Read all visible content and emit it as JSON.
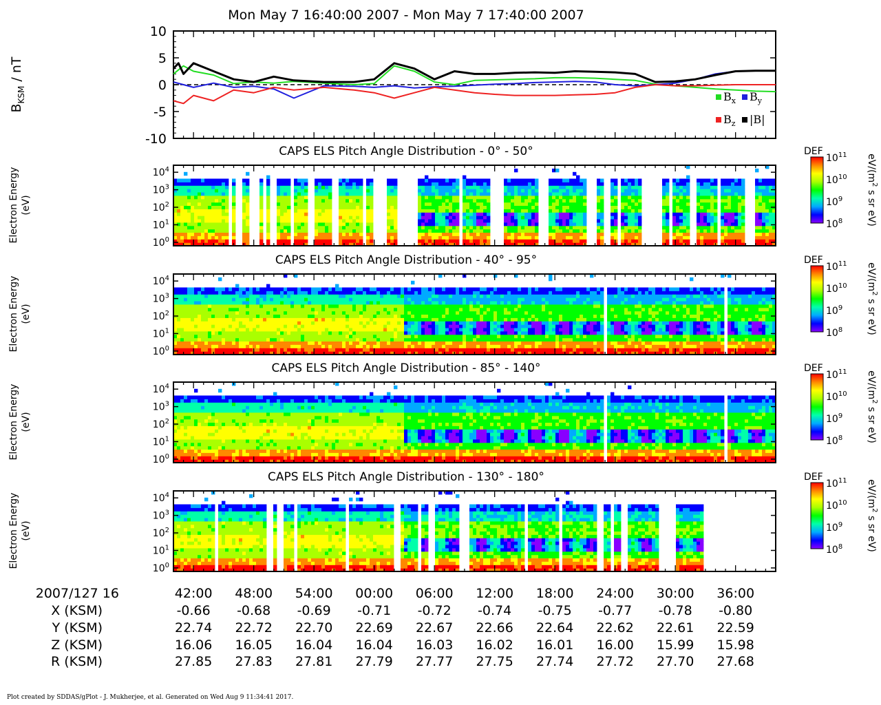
{
  "title": "Mon May 7 16:40:00 2007 - Mon May 7 17:40:00 2007",
  "footer": "Plot created by SDDAS/gPlot - J. Mukherjee, et al.  Generated on Wed Aug 9 11:34:41 2017.",
  "colors": {
    "bx": "#22dd22",
    "by": "#1f1fdd",
    "bz": "#ee2222",
    "bmag": "#000000",
    "colorbar": [
      "#8800ff",
      "#0000ff",
      "#00aaff",
      "#00ffaa",
      "#00ff00",
      "#aaff00",
      "#ffff00",
      "#ff8800",
      "#ff0000"
    ]
  },
  "chart_data": [
    {
      "type": "line",
      "ylabel": "B_KSM / nT",
      "ylabel_main": "B",
      "ylabel_sub": "KSM",
      "ylabel_tail": " / nT",
      "ylim": [
        -10,
        10
      ],
      "yticks": [
        10,
        5,
        0,
        -5,
        -10
      ],
      "ytick_labels": [
        "10",
        "5",
        "0",
        "-5",
        "-10"
      ],
      "xlim_minutes": [
        0,
        60
      ],
      "zero_line": "dashed",
      "legend_placement": "bottom-right",
      "series": [
        {
          "name": "Bx",
          "label_main": "B",
          "label_sub": "x",
          "color_key": "bx",
          "x": [
            0,
            1,
            2,
            4,
            6,
            8,
            10,
            12,
            15,
            18,
            20,
            22,
            24,
            26,
            28,
            30,
            32,
            34,
            36,
            38,
            40,
            42,
            44,
            46,
            48,
            50,
            52,
            54,
            56,
            58,
            60
          ],
          "y": [
            2.0,
            3.5,
            2.5,
            1.8,
            0.2,
            0.5,
            0.3,
            0.6,
            0.3,
            0.0,
            0.2,
            3.5,
            2.5,
            0.5,
            0.0,
            0.8,
            0.9,
            1.0,
            1.1,
            1.3,
            1.3,
            1.2,
            1.0,
            0.8,
            0.1,
            -0.2,
            -0.5,
            -0.8,
            -1.0,
            -1.2,
            -1.3
          ]
        },
        {
          "name": "By",
          "label_main": "B",
          "label_sub": "y",
          "color_key": "by",
          "x": [
            0,
            1,
            2,
            4,
            6,
            8,
            10,
            12,
            15,
            18,
            20,
            22,
            24,
            26,
            28,
            30,
            32,
            34,
            36,
            38,
            40,
            42,
            44,
            46,
            48,
            50,
            52,
            54,
            56,
            58,
            60
          ],
          "y": [
            0.5,
            0.0,
            -0.5,
            0.3,
            -0.5,
            -0.3,
            -0.8,
            -2.5,
            -0.2,
            -0.3,
            -0.5,
            -0.2,
            -0.6,
            -0.4,
            -0.3,
            -0.1,
            0.1,
            0.2,
            0.4,
            0.5,
            0.6,
            0.5,
            0.0,
            -0.2,
            0.0,
            0.3,
            1.0,
            2.0,
            2.5,
            2.6,
            2.6
          ]
        },
        {
          "name": "Bz",
          "label_main": "B",
          "label_sub": "z",
          "color_key": "bz",
          "x": [
            0,
            1,
            2,
            4,
            6,
            8,
            10,
            12,
            15,
            18,
            20,
            22,
            24,
            26,
            28,
            30,
            32,
            34,
            36,
            38,
            40,
            42,
            44,
            46,
            48,
            50,
            52,
            54,
            56,
            58,
            60
          ],
          "y": [
            -3.0,
            -3.5,
            -2.0,
            -3.0,
            -1.0,
            -1.5,
            -0.5,
            -1.0,
            -0.5,
            -1.0,
            -1.5,
            -2.5,
            -1.5,
            -0.5,
            -1.0,
            -1.5,
            -1.8,
            -2.0,
            -2.0,
            -2.0,
            -1.9,
            -1.8,
            -1.5,
            -0.5,
            0.0,
            -0.2,
            -0.2,
            -0.1,
            0.0,
            0.0,
            0.0
          ]
        },
        {
          "name": "|B|",
          "label_main": "|B|",
          "label_sub": "",
          "color_key": "bmag",
          "x": [
            0,
            0.5,
            1,
            2,
            4,
            6,
            8,
            10,
            12,
            15,
            18,
            20,
            22,
            24,
            26,
            28,
            30,
            32,
            34,
            36,
            38,
            40,
            42,
            44,
            46,
            48,
            50,
            52,
            54,
            56,
            58,
            60
          ],
          "y": [
            3.0,
            4.0,
            2.0,
            4.0,
            2.5,
            1.0,
            0.5,
            1.5,
            0.8,
            0.5,
            0.5,
            1.0,
            4.0,
            3.0,
            1.0,
            2.5,
            2.0,
            2.0,
            2.2,
            2.3,
            2.2,
            2.5,
            2.4,
            2.3,
            2.0,
            0.5,
            0.6,
            1.0,
            1.8,
            2.5,
            2.6,
            2.6
          ]
        }
      ]
    },
    {
      "type": "heatmap",
      "title": "CAPS ELS Pitch Angle Distribution - 0° - 50°",
      "ylabel_line1": "Electron Energy",
      "ylabel_line2": "(eV)",
      "ylim_log10": [
        -0.2,
        4.4
      ],
      "yticks_log10": [
        0,
        1,
        2,
        3,
        4
      ],
      "zlabel": "DEF",
      "zunit_main": "eV/(m",
      "zunit_sup": "2",
      "zunit_tail": " s sr eV)",
      "zticks_log10": [
        8,
        9,
        10,
        11
      ],
      "pattern": "broad",
      "coverage_gaps_minutes": [
        [
          5.5,
          5.8
        ],
        [
          6.2,
          6.8
        ],
        [
          7.6,
          8.5
        ],
        [
          8.8,
          9.3
        ],
        [
          9.6,
          10.3
        ],
        [
          11.5,
          12.0
        ],
        [
          13.5,
          14.2
        ],
        [
          15.8,
          16.5
        ],
        [
          18.8,
          19.3
        ],
        [
          20.0,
          21.2
        ],
        [
          22.4,
          24.5
        ],
        [
          28.4,
          28.9
        ],
        [
          31.5,
          33.0
        ],
        [
          36.5,
          37.2
        ],
        [
          41.3,
          42.0
        ],
        [
          42.8,
          43.6
        ],
        [
          44.2,
          44.5
        ],
        [
          46.5,
          48.8
        ],
        [
          49.5,
          49.7
        ],
        [
          51.5,
          52.2
        ],
        [
          54.2,
          54.4
        ],
        [
          57.0,
          58.0
        ]
      ],
      "no_data_after_minutes": 60
    },
    {
      "type": "heatmap",
      "title": "CAPS ELS Pitch Angle Distribution - 40° - 95°",
      "ylabel_line1": "Electron Energy",
      "ylabel_line2": "(eV)",
      "ylim_log10": [
        -0.2,
        4.4
      ],
      "yticks_log10": [
        0,
        1,
        2,
        3,
        4
      ],
      "zlabel": "DEF",
      "zunit_main": "eV/(m",
      "zunit_sup": "2",
      "zunit_tail": " s sr eV)",
      "zticks_log10": [
        8,
        9,
        10,
        11
      ],
      "pattern": "dense",
      "coverage_gaps_minutes": [
        [
          0.3,
          0.4
        ],
        [
          4.0,
          4.1
        ],
        [
          11.0,
          11.1
        ],
        [
          14.0,
          14.1
        ],
        [
          17.0,
          17.1
        ],
        [
          19.5,
          19.6
        ],
        [
          22.0,
          22.1
        ],
        [
          25.0,
          25.1
        ],
        [
          28.0,
          28.1
        ],
        [
          29.8,
          29.9
        ],
        [
          33.5,
          33.6
        ],
        [
          35.0,
          35.1
        ],
        [
          37.0,
          37.1
        ],
        [
          40.5,
          40.6
        ],
        [
          43.0,
          43.1
        ],
        [
          45.5,
          45.6
        ],
        [
          48.0,
          48.1
        ],
        [
          50.0,
          50.1
        ],
        [
          52.5,
          52.6
        ],
        [
          55.0,
          55.1
        ],
        [
          57.5,
          57.6
        ]
      ],
      "no_data_after_minutes": 60
    },
    {
      "type": "heatmap",
      "title": "CAPS ELS Pitch Angle Distribution - 85° - 140°",
      "ylabel_line1": "Electron Energy",
      "ylabel_line2": "(eV)",
      "ylim_log10": [
        -0.2,
        4.4
      ],
      "yticks_log10": [
        0,
        1,
        2,
        3,
        4
      ],
      "zlabel": "DEF",
      "zunit_main": "eV/(m",
      "zunit_sup": "2",
      "zunit_tail": " s sr eV)",
      "zticks_log10": [
        8,
        9,
        10,
        11
      ],
      "pattern": "dense",
      "coverage_gaps_minutes": [
        [
          0.3,
          0.4
        ],
        [
          4.0,
          4.1
        ],
        [
          11.0,
          11.1
        ],
        [
          14.0,
          14.1
        ],
        [
          17.0,
          17.1
        ],
        [
          19.5,
          19.6
        ],
        [
          22.0,
          22.1
        ],
        [
          25.0,
          25.1
        ],
        [
          28.0,
          28.1
        ],
        [
          29.8,
          29.9
        ],
        [
          33.5,
          33.6
        ],
        [
          35.0,
          35.1
        ],
        [
          37.0,
          37.1
        ],
        [
          40.5,
          40.6
        ],
        [
          43.0,
          43.1
        ],
        [
          45.5,
          45.6
        ],
        [
          48.0,
          48.1
        ],
        [
          50.0,
          50.1
        ],
        [
          52.5,
          52.6
        ],
        [
          55.0,
          55.1
        ],
        [
          57.5,
          57.6
        ]
      ],
      "no_data_after_minutes": 60
    },
    {
      "type": "heatmap",
      "title": "CAPS ELS Pitch Angle Distribution - 130° - 180°",
      "ylabel_line1": "Electron Energy",
      "ylabel_line2": "(eV)",
      "ylim_log10": [
        -0.2,
        4.4
      ],
      "yticks_log10": [
        0,
        1,
        2,
        3,
        4
      ],
      "zlabel": "DEF",
      "zunit_main": "eV/(m",
      "zunit_sup": "2",
      "zunit_tail": " s sr eV)",
      "zticks_log10": [
        8,
        9,
        10,
        11
      ],
      "pattern": "broad",
      "coverage_gaps_minutes": [
        [
          4.0,
          4.4
        ],
        [
          9.3,
          9.8
        ],
        [
          10.3,
          11.0
        ],
        [
          12.0,
          12.3
        ],
        [
          17.0,
          17.5
        ],
        [
          22.0,
          22.5
        ],
        [
          24.2,
          24.8
        ],
        [
          25.5,
          25.9
        ],
        [
          28.4,
          29.5
        ],
        [
          35.0,
          35.3
        ],
        [
          38.5,
          38.8
        ],
        [
          42.3,
          43.0
        ],
        [
          43.5,
          43.9
        ],
        [
          44.6,
          45.3
        ],
        [
          48.5,
          50.2
        ]
      ],
      "no_data_after_minutes": 52.8
    }
  ],
  "time_axis": {
    "header_label": "2007/127 16",
    "tick_minutes": [
      2,
      8,
      14,
      20,
      26,
      32,
      38,
      44,
      50,
      56
    ],
    "tick_labels": [
      "42:00",
      "48:00",
      "54:00",
      "00:00",
      "06:00",
      "12:00",
      "18:00",
      "24:00",
      "30:00",
      "36:00"
    ]
  },
  "ephemeris": [
    {
      "label": "X (KSM)",
      "values": [
        "-0.66",
        "-0.68",
        "-0.69",
        "-0.71",
        "-0.72",
        "-0.74",
        "-0.75",
        "-0.77",
        "-0.78",
        "-0.80"
      ]
    },
    {
      "label": "Y (KSM)",
      "values": [
        "22.74",
        "22.72",
        "22.70",
        "22.69",
        "22.67",
        "22.66",
        "22.64",
        "22.62",
        "22.61",
        "22.59"
      ]
    },
    {
      "label": "Z (KSM)",
      "values": [
        "16.06",
        "16.05",
        "16.04",
        "16.04",
        "16.03",
        "16.02",
        "16.01",
        "16.00",
        "15.99",
        "15.98"
      ]
    },
    {
      "label": "R (KSM)",
      "values": [
        "27.85",
        "27.83",
        "27.81",
        "27.79",
        "27.77",
        "27.75",
        "27.74",
        "27.72",
        "27.70",
        "27.68"
      ]
    }
  ]
}
